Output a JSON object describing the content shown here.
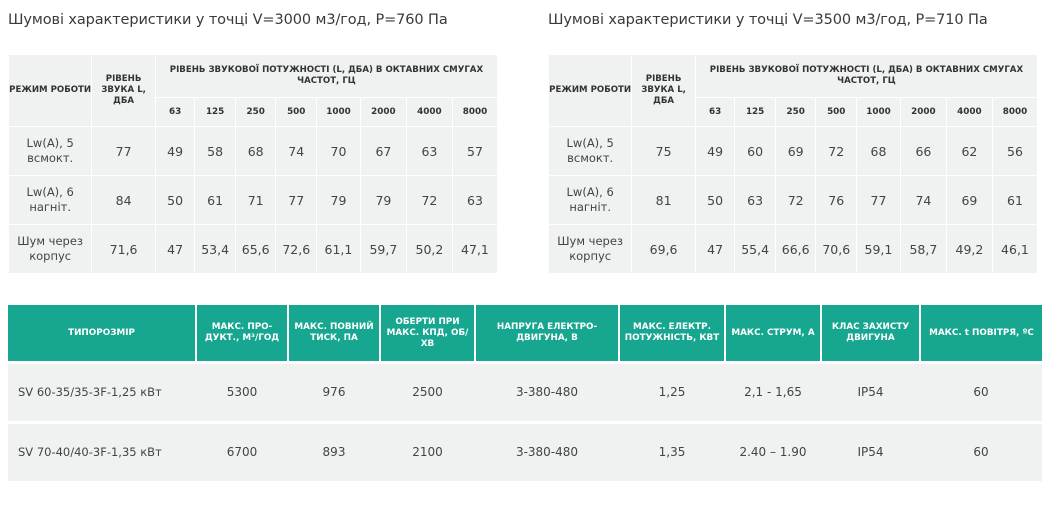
{
  "noise_tables": [
    {
      "title": "Шумові характеристики у точці V=3000 м3/год, P=760 Па",
      "header": {
        "mode": "РЕЖИМ РОБОТИ",
        "level": "РІВЕНЬ ЗВУКА L, ДБА",
        "power": "РІВЕНЬ ЗВУКОВОЇ ПОТУЖНОСТІ (L, ДБА) В ОКТАВНИХ СМУГАХ ЧАСТОТ, ГЦ",
        "bands": [
          "63",
          "125",
          "250",
          "500",
          "1000",
          "2000",
          "4000",
          "8000"
        ]
      },
      "rows": [
        {
          "mode": "Lw(A), 5 всмокт.",
          "level": "77",
          "values": [
            "49",
            "58",
            "68",
            "74",
            "70",
            "67",
            "63",
            "57"
          ]
        },
        {
          "mode": "Lw(A), 6 нагніт.",
          "level": "84",
          "values": [
            "50",
            "61",
            "71",
            "77",
            "79",
            "79",
            "72",
            "63"
          ]
        },
        {
          "mode": "Шум через корпус",
          "level": "71,6",
          "values": [
            "47",
            "53,4",
            "65,6",
            "72,6",
            "61,1",
            "59,7",
            "50,2",
            "47,1"
          ]
        }
      ]
    },
    {
      "title": "Шумові характеристики у точці V=3500 м3/год, P=710 Па",
      "header": {
        "mode": "РЕЖИМ РОБОТИ",
        "level": "РІВЕНЬ ЗВУКА L, ДБА",
        "power": "РІВЕНЬ ЗВУКОВОЇ ПОТУЖНОСТІ (L, ДБА) В ОКТАВНИХ СМУГАХ ЧАСТОТ, ГЦ",
        "bands": [
          "63",
          "125",
          "250",
          "500",
          "1000",
          "2000",
          "4000",
          "8000"
        ]
      },
      "rows": [
        {
          "mode": "Lw(A), 5 всмокт.",
          "level": "75",
          "values": [
            "49",
            "60",
            "69",
            "72",
            "68",
            "66",
            "62",
            "56"
          ]
        },
        {
          "mode": "Lw(A), 6 нагніт.",
          "level": "81",
          "values": [
            "50",
            "63",
            "72",
            "76",
            "77",
            "74",
            "69",
            "61"
          ]
        },
        {
          "mode": "Шум через корпус",
          "level": "69,6",
          "values": [
            "47",
            "55,4",
            "66,6",
            "70,6",
            "59,1",
            "58,7",
            "49,2",
            "46,1"
          ]
        }
      ]
    }
  ],
  "types_table": {
    "headers": [
      "ТИПОРОЗМІР",
      "МАКС. ПРО-ДУКТ., М³/ГОД",
      "МАКС. ПОВНИЙ ТИСК, ПА",
      "ОБЕРТИ ПРИ МАКС. КПД, ОБ/ХВ",
      "НАПРУГА ЕЛЕКТРО-ДВИГУНА, В",
      "МАКС. ЕЛЕКТР. ПОТУЖНІСТЬ, КВТ",
      "МАКС. СТРУМ, А",
      "КЛАС ЗАХИСТУ ДВИГУНА",
      "МАКС. t ПОВІТРЯ, ºС"
    ],
    "rows": [
      [
        "SV 60-35/35-3F-1,25 кВт",
        "5300",
        "976",
        "2500",
        "3-380-480",
        "1,25",
        "2,1 - 1,65",
        "IP54",
        "60"
      ],
      [
        "SV 70-40/40-3F-1,35 кВт",
        "6700",
        "893",
        "2100",
        "3-380-480",
        "1,35",
        "2.40 – 1.90",
        "IP54",
        "60"
      ]
    ]
  }
}
